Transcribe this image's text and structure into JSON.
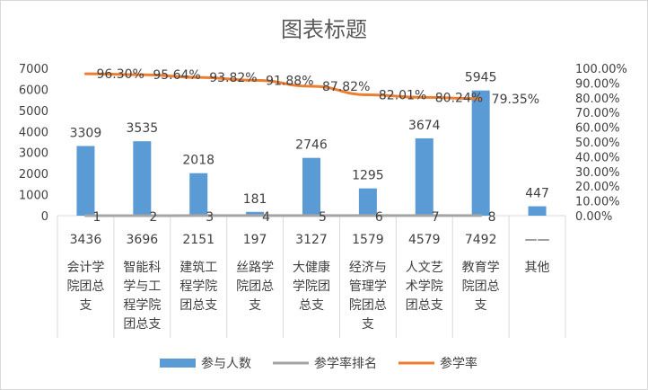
{
  "chart_data": {
    "type": "bar",
    "title": "图表标题",
    "categories": [
      {
        "sub": "3436",
        "lines": [
          "会计学",
          "院团总",
          "支"
        ]
      },
      {
        "sub": "3696",
        "lines": [
          "智能科",
          "学与工",
          "程学院",
          "团总支"
        ]
      },
      {
        "sub": "2151",
        "lines": [
          "建筑工",
          "程学院",
          "团总支"
        ]
      },
      {
        "sub": "197",
        "lines": [
          "丝路学",
          "院团总",
          "支"
        ]
      },
      {
        "sub": "3127",
        "lines": [
          "大健康",
          "学院团",
          "总支"
        ]
      },
      {
        "sub": "1579",
        "lines": [
          "经济与",
          "管理学",
          "院团总",
          "支"
        ]
      },
      {
        "sub": "4579",
        "lines": [
          "人文艺",
          "术学院",
          "团总支"
        ]
      },
      {
        "sub": "7492",
        "lines": [
          "教育学",
          "院团总",
          "支"
        ]
      },
      {
        "sub": "——",
        "lines": [
          "其他"
        ]
      }
    ],
    "series": [
      {
        "name": "参与人数",
        "type": "bar",
        "axis": "left",
        "color": "#5b9bd5",
        "values": [
          3309,
          3535,
          2018,
          181,
          2746,
          1295,
          3674,
          5945,
          447
        ],
        "labels": [
          "3309",
          "3535",
          "2018",
          "181",
          "2746",
          "1295",
          "3674",
          "5945",
          "447"
        ]
      },
      {
        "name": "参学率排名",
        "type": "line",
        "axis": "left",
        "color": "#a5a5a5",
        "values": [
          1,
          2,
          3,
          4,
          5,
          6,
          7,
          8,
          null
        ],
        "labels": [
          "1",
          "2",
          "3",
          "4",
          "5",
          "6",
          "7",
          "8",
          ""
        ]
      },
      {
        "name": "参学率",
        "type": "line",
        "axis": "right",
        "color": "#ed7d31",
        "values": [
          96.3,
          95.64,
          93.82,
          91.88,
          87.82,
          82.01,
          80.24,
          79.35,
          null
        ],
        "labels": [
          "96.30%",
          "95.64%",
          "93.82%",
          "91.88%",
          "87.82%",
          "82.01%",
          "80.24%",
          "79.35%",
          ""
        ]
      }
    ],
    "left_axis": {
      "min": 0,
      "max": 7000,
      "step": 1000,
      "ticks": [
        "0",
        "1000",
        "2000",
        "3000",
        "4000",
        "5000",
        "6000",
        "7000"
      ]
    },
    "right_axis": {
      "min": 0,
      "max": 100,
      "step": 10,
      "ticks": [
        "0.00%",
        "10.00%",
        "20.00%",
        "30.00%",
        "40.00%",
        "50.00%",
        "60.00%",
        "70.00%",
        "80.00%",
        "90.00%",
        "100.00%"
      ]
    },
    "grid": false,
    "legend_position": "bottom"
  }
}
